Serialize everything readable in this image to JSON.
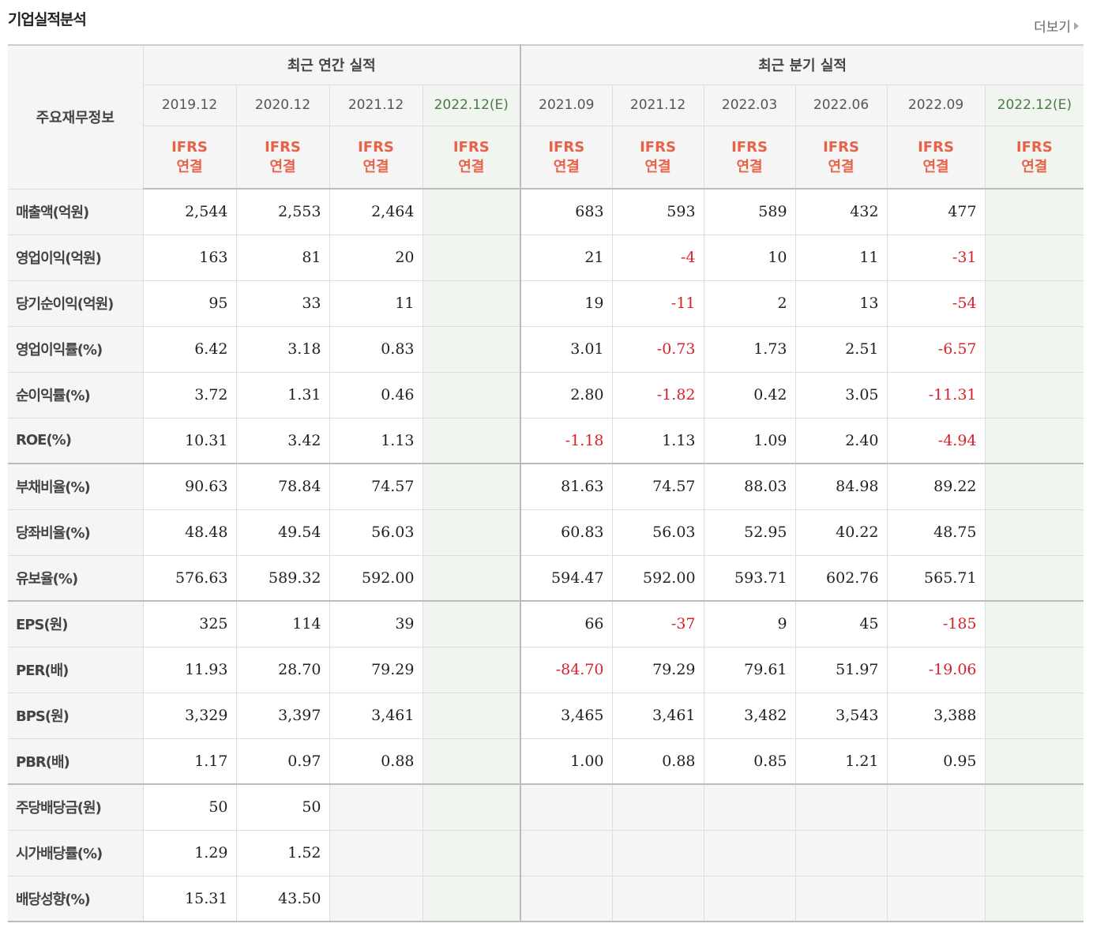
{
  "header": {
    "title": "기업실적분석",
    "more_label": "더보기"
  },
  "table": {
    "label_header": "주요재무정보",
    "annual_header": "최근 연간 실적",
    "quarter_header": "최근 분기 실적",
    "annual_dates": [
      "2019.12",
      "2020.12",
      "2021.12",
      "2022.12(E)"
    ],
    "quarter_dates": [
      "2021.09",
      "2021.12",
      "2022.03",
      "2022.06",
      "2022.09",
      "2022.12(E)"
    ],
    "ifrs_line1": "IFRS",
    "ifrs_line2": "연결",
    "rows": [
      {
        "label": "매출액(억원)",
        "values": [
          "2,544",
          "2,553",
          "2,464",
          "",
          "683",
          "593",
          "589",
          "432",
          "477",
          ""
        ]
      },
      {
        "label": "영업이익(억원)",
        "values": [
          "163",
          "81",
          "20",
          "",
          "21",
          "-4",
          "10",
          "11",
          "-31",
          ""
        ]
      },
      {
        "label": "당기순이익(억원)",
        "values": [
          "95",
          "33",
          "11",
          "",
          "19",
          "-11",
          "2",
          "13",
          "-54",
          ""
        ]
      },
      {
        "label": "영업이익률(%)",
        "values": [
          "6.42",
          "3.18",
          "0.83",
          "",
          "3.01",
          "-0.73",
          "1.73",
          "2.51",
          "-6.57",
          ""
        ]
      },
      {
        "label": "순이익률(%)",
        "values": [
          "3.72",
          "1.31",
          "0.46",
          "",
          "2.80",
          "-1.82",
          "0.42",
          "3.05",
          "-11.31",
          ""
        ]
      },
      {
        "label": "ROE(%)",
        "values": [
          "10.31",
          "3.42",
          "1.13",
          "",
          "-1.18",
          "1.13",
          "1.09",
          "2.40",
          "-4.94",
          ""
        ]
      },
      {
        "label": "부채비율(%)",
        "values": [
          "90.63",
          "78.84",
          "74.57",
          "",
          "81.63",
          "74.57",
          "88.03",
          "84.98",
          "89.22",
          ""
        ]
      },
      {
        "label": "당좌비율(%)",
        "values": [
          "48.48",
          "49.54",
          "56.03",
          "",
          "60.83",
          "56.03",
          "52.95",
          "40.22",
          "48.75",
          ""
        ]
      },
      {
        "label": "유보율(%)",
        "values": [
          "576.63",
          "589.32",
          "592.00",
          "",
          "594.47",
          "592.00",
          "593.71",
          "602.76",
          "565.71",
          ""
        ]
      },
      {
        "label": "EPS(원)",
        "values": [
          "325",
          "114",
          "39",
          "",
          "66",
          "-37",
          "9",
          "45",
          "-185",
          ""
        ]
      },
      {
        "label": "PER(배)",
        "values": [
          "11.93",
          "28.70",
          "79.29",
          "",
          "-84.70",
          "79.29",
          "79.61",
          "51.97",
          "-19.06",
          ""
        ]
      },
      {
        "label": "BPS(원)",
        "values": [
          "3,329",
          "3,397",
          "3,461",
          "",
          "3,465",
          "3,461",
          "3,482",
          "3,543",
          "3,388",
          ""
        ]
      },
      {
        "label": "PBR(배)",
        "values": [
          "1.17",
          "0.97",
          "0.88",
          "",
          "1.00",
          "0.88",
          "0.85",
          "1.21",
          "0.95",
          ""
        ]
      },
      {
        "label": "주당배당금(원)",
        "values": [
          "50",
          "50",
          "",
          "",
          "",
          "",
          "",
          "",
          "",
          ""
        ]
      },
      {
        "label": "시가배당률(%)",
        "values": [
          "1.29",
          "1.52",
          "",
          "",
          "",
          "",
          "",
          "",
          "",
          ""
        ]
      },
      {
        "label": "배당성향(%)",
        "values": [
          "15.31",
          "43.50",
          "",
          "",
          "",
          "",
          "",
          "",
          "",
          ""
        ]
      }
    ]
  },
  "colors": {
    "negative": "#d8222a",
    "ifrs": "#e8624a",
    "estimate_bg": "#f0f5ef",
    "header_bg": "#f5f5f5"
  }
}
